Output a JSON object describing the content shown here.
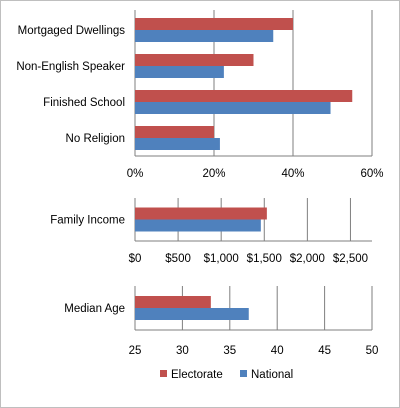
{
  "legend": {
    "items": [
      {
        "name": "Electorate",
        "color": "#c0504d"
      },
      {
        "name": "National",
        "color": "#4f81bd"
      }
    ],
    "position": "bottom"
  },
  "chart_data": [
    {
      "type": "bar",
      "orientation": "horizontal",
      "title": "",
      "xlabel": "",
      "ylabel": "",
      "categories": [
        "Mortgaged Dwellings",
        "Non-English Speaker",
        "Finished School",
        "No Religion"
      ],
      "series": [
        {
          "name": "Electorate",
          "values": [
            40,
            30,
            55,
            20
          ]
        },
        {
          "name": "National",
          "values": [
            35,
            22.5,
            49.5,
            21.5
          ]
        }
      ],
      "xlim": [
        0,
        60
      ],
      "ticks": [
        "0%",
        "20%",
        "40%",
        "60%"
      ],
      "tick_values": [
        0,
        20,
        40,
        60
      ],
      "grid": true
    },
    {
      "type": "bar",
      "orientation": "horizontal",
      "title": "",
      "xlabel": "",
      "ylabel": "",
      "categories": [
        "Family Income"
      ],
      "series": [
        {
          "name": "Electorate",
          "values": [
            1530
          ]
        },
        {
          "name": "National",
          "values": [
            1460
          ]
        }
      ],
      "xlim": [
        0,
        2750
      ],
      "ticks": [
        "$0",
        "$500",
        "$1,000",
        "$1,500",
        "$2,000",
        "$2,500"
      ],
      "tick_values": [
        0,
        500,
        1000,
        1500,
        2000,
        2500
      ],
      "grid": true
    },
    {
      "type": "bar",
      "orientation": "horizontal",
      "title": "",
      "xlabel": "",
      "ylabel": "",
      "categories": [
        "Median Age"
      ],
      "series": [
        {
          "name": "Electorate",
          "values": [
            33
          ]
        },
        {
          "name": "National",
          "values": [
            37
          ]
        }
      ],
      "xlim": [
        25,
        50
      ],
      "ticks": [
        "25",
        "30",
        "35",
        "40",
        "45",
        "50"
      ],
      "tick_values": [
        25,
        30,
        35,
        40,
        45,
        50
      ],
      "grid": true
    }
  ]
}
